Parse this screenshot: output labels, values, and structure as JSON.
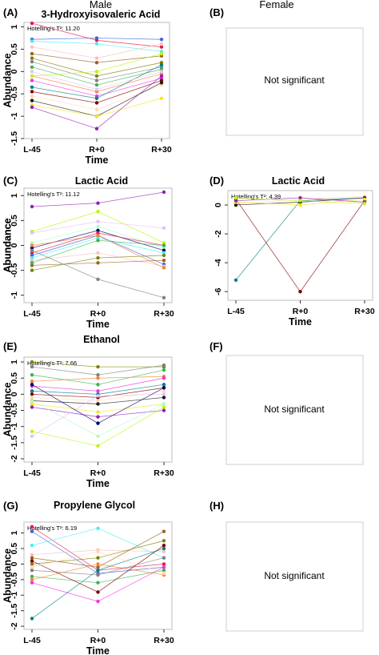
{
  "headers": {
    "male": "Male",
    "female": "Female"
  },
  "not_significant_text": "Not significant",
  "colors": {
    "palette": [
      "#e6194b",
      "#3cb44b",
      "#ffe119",
      "#4363d8",
      "#f58231",
      "#911eb4",
      "#46f0f0",
      "#f032e6",
      "#bcf60c",
      "#fabebe",
      "#008080",
      "#e6beff",
      "#9a6324",
      "#800000",
      "#aaffc3",
      "#808000",
      "#ffd8b1",
      "#000075",
      "#808080",
      "#1a1a1a"
    ]
  },
  "panels": [
    {
      "letter": "(A)",
      "type": "chart",
      "title": "3-Hydroxyisovaleric Acid",
      "hotelling": "Hotelling's T²: 11.20"
    },
    {
      "letter": "(B)",
      "type": "empty"
    },
    {
      "letter": "(C)",
      "type": "chart",
      "title": "Lactic Acid",
      "hotelling": "Hotelling's T²: 11.12"
    },
    {
      "letter": "(D)",
      "type": "chart",
      "title": "Lactic Acid",
      "hotelling": "Hotelling's T²: 4.39"
    },
    {
      "letter": "(E)",
      "type": "chart",
      "title": "Ethanol",
      "hotelling": "Hotelling's T²: 7.66"
    },
    {
      "letter": "(F)",
      "type": "empty"
    },
    {
      "letter": "(G)",
      "type": "chart",
      "title": "Propylene Glycol",
      "hotelling": "Hotelling's T²: 6.19"
    },
    {
      "letter": "(H)",
      "type": "empty"
    }
  ],
  "chart_data": [
    {
      "type": "line",
      "panel": "A",
      "title": "3-Hydroxyisovaleric Acid",
      "xlabel": "Time",
      "ylabel": "Abundance",
      "categories": [
        "L-45",
        "R+0",
        "R+30"
      ],
      "ylim": [
        -1.5,
        1.1
      ],
      "yticks": [
        -1.5,
        -1,
        -0.5,
        0,
        0.5,
        1
      ],
      "annotation": "Hotelling's T²: 11.20",
      "series": [
        {
          "values": [
            1.08,
            0.7,
            0.55
          ]
        },
        {
          "values": [
            0.72,
            0.75,
            0.72
          ]
        },
        {
          "values": [
            0.68,
            0.62,
            0.45
          ]
        },
        {
          "values": [
            0.55,
            0.3,
            0.62
          ]
        },
        {
          "values": [
            0.4,
            0.2,
            0.35
          ]
        },
        {
          "values": [
            0.3,
            -0.1,
            0.2
          ]
        },
        {
          "values": [
            0.22,
            -0.2,
            0.1
          ]
        },
        {
          "values": [
            0.1,
            -0.3,
            0.05
          ]
        },
        {
          "values": [
            -0.1,
            -0.45,
            -0.05
          ]
        },
        {
          "values": [
            -0.2,
            -0.55,
            -0.15
          ]
        },
        {
          "values": [
            -0.35,
            -0.6,
            0.15
          ]
        },
        {
          "values": [
            -0.45,
            -0.7,
            -0.2
          ]
        },
        {
          "values": [
            -0.55,
            -0.85,
            -0.3
          ]
        },
        {
          "values": [
            -0.65,
            -1.0,
            -0.25
          ]
        },
        {
          "values": [
            -0.75,
            -1.0,
            -0.6
          ]
        },
        {
          "values": [
            -0.8,
            -1.28,
            -0.1
          ]
        },
        {
          "values": [
            -0.1,
            0.0,
            0.4
          ]
        },
        {
          "values": [
            0.0,
            -0.4,
            0.0
          ]
        }
      ]
    },
    {
      "type": "line",
      "panel": "C",
      "title": "Lactic Acid",
      "xlabel": "Time",
      "ylabel": "Abundance",
      "categories": [
        "L-45",
        "R+0",
        "R+30"
      ],
      "ylim": [
        -1.15,
        1.15
      ],
      "yticks": [
        -1,
        -0.5,
        0,
        0.5,
        1
      ],
      "annotation": "Hotelling's T²: 11.12",
      "series": [
        {
          "values": [
            0.78,
            0.85,
            1.07
          ]
        },
        {
          "values": [
            0.28,
            0.68,
            0.05
          ]
        },
        {
          "values": [
            0.25,
            0.48,
            0.35
          ]
        },
        {
          "values": [
            0.05,
            0.38,
            -0.05
          ]
        },
        {
          "values": [
            -0.05,
            0.3,
            -0.1
          ]
        },
        {
          "values": [
            -0.15,
            0.25,
            0.0
          ]
        },
        {
          "values": [
            -0.2,
            0.2,
            -0.38
          ]
        },
        {
          "values": [
            -0.25,
            0.15,
            -0.15
          ]
        },
        {
          "values": [
            -0.3,
            -0.15,
            -0.42
          ]
        },
        {
          "values": [
            -0.4,
            -0.35,
            -0.3
          ]
        },
        {
          "values": [
            -0.5,
            -0.25,
            -0.2
          ]
        },
        {
          "values": [
            -0.1,
            -0.68,
            -1.05
          ]
        },
        {
          "values": [
            -0.35,
            0.1,
            0.0
          ]
        },
        {
          "values": [
            0.0,
            0.2,
            -0.45
          ]
        }
      ]
    },
    {
      "type": "line",
      "panel": "D",
      "title": "Lactic Acid",
      "xlabel": "Time",
      "ylabel": "Abundance",
      "categories": [
        "L-45",
        "R+0",
        "R+30"
      ],
      "ylim": [
        -6.6,
        1.0
      ],
      "yticks": [
        -6,
        -4,
        -2,
        0
      ],
      "annotation": "Hotelling's T²: 4.39",
      "series": [
        {
          "values": [
            -5.2,
            0.3,
            0.5
          ]
        },
        {
          "values": [
            0.4,
            -6.0,
            0.3
          ]
        },
        {
          "values": [
            0.1,
            0.4,
            0.6
          ]
        },
        {
          "values": [
            0.0,
            0.2,
            0.5
          ]
        },
        {
          "values": [
            0.2,
            0.0,
            0.4
          ]
        },
        {
          "values": [
            0.3,
            0.5,
            0.2
          ]
        },
        {
          "values": [
            0.5,
            0.3,
            0.1
          ]
        }
      ]
    },
    {
      "type": "line",
      "panel": "E",
      "title": "Ethanol",
      "xlabel": "Time",
      "ylabel": "Abundance",
      "categories": [
        "L-45",
        "R+0",
        "R+30"
      ],
      "ylim": [
        -2.1,
        1.15
      ],
      "yticks": [
        -2,
        -1.5,
        -1,
        -0.5,
        0,
        0.5,
        1
      ],
      "annotation": "Hotelling's T²: 7.66",
      "series": [
        {
          "values": [
            1.0,
            0.85,
            0.85
          ]
        },
        {
          "values": [
            0.85,
            0.6,
            0.9
          ]
        },
        {
          "values": [
            0.6,
            0.3,
            0.75
          ]
        },
        {
          "values": [
            0.4,
            0.5,
            0.55
          ]
        },
        {
          "values": [
            0.25,
            0.1,
            0.5
          ]
        },
        {
          "values": [
            0.1,
            0.0,
            0.3
          ]
        },
        {
          "values": [
            0.0,
            -0.1,
            0.2
          ]
        },
        {
          "values": [
            -0.1,
            -0.2,
            0.1
          ]
        },
        {
          "values": [
            -0.2,
            -0.3,
            -0.1
          ]
        },
        {
          "values": [
            -0.3,
            -0.55,
            -0.3
          ]
        },
        {
          "values": [
            -0.4,
            -0.7,
            -0.5
          ]
        },
        {
          "values": [
            -1.15,
            -1.6,
            -0.4
          ]
        },
        {
          "values": [
            -1.3,
            -0.05,
            0.0
          ]
        },
        {
          "values": [
            -0.2,
            -1.3,
            -0.3
          ]
        },
        {
          "values": [
            0.3,
            -0.9,
            0.2
          ]
        }
      ]
    },
    {
      "type": "line",
      "panel": "G",
      "title": "Propylene Glycol",
      "xlabel": "Time",
      "ylabel": "Abundance",
      "categories": [
        "L-45",
        "R+0",
        "R+30"
      ],
      "ylim": [
        -2.1,
        1.35
      ],
      "yticks": [
        -2,
        -1.5,
        -1,
        -0.5,
        0,
        0.5,
        1
      ],
      "annotation": "Hotelling's T²: 6.19",
      "series": [
        {
          "values": [
            1.2,
            -0.2,
            0.0
          ]
        },
        {
          "values": [
            1.05,
            -0.3,
            -0.1
          ]
        },
        {
          "values": [
            0.6,
            1.15,
            0.2
          ]
        },
        {
          "values": [
            0.3,
            0.45,
            0.4
          ]
        },
        {
          "values": [
            0.2,
            -0.1,
            1.05
          ]
        },
        {
          "values": [
            0.0,
            0.2,
            0.75
          ]
        },
        {
          "values": [
            -0.2,
            -0.35,
            0.2
          ]
        },
        {
          "values": [
            -0.4,
            -0.6,
            -0.2
          ]
        },
        {
          "values": [
            -0.5,
            0.0,
            -0.35
          ]
        },
        {
          "values": [
            -0.6,
            -1.2,
            -0.1
          ]
        },
        {
          "values": [
            -1.75,
            -0.2,
            0.5
          ]
        },
        {
          "values": [
            0.1,
            -0.9,
            0.6
          ]
        },
        {
          "values": [
            -0.1,
            0.4,
            -0.3
          ]
        }
      ]
    }
  ]
}
